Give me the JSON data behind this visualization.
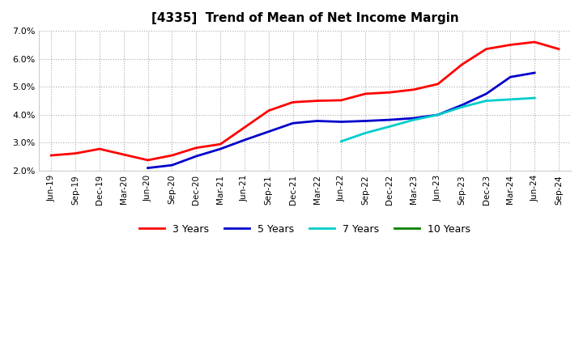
{
  "title": "[4335]  Trend of Mean of Net Income Margin",
  "x_labels": [
    "Jun-19",
    "Sep-19",
    "Dec-19",
    "Mar-20",
    "Jun-20",
    "Sep-20",
    "Dec-20",
    "Mar-21",
    "Jun-21",
    "Sep-21",
    "Dec-21",
    "Mar-22",
    "Jun-22",
    "Sep-22",
    "Dec-22",
    "Mar-23",
    "Jun-23",
    "Sep-23",
    "Dec-23",
    "Mar-24",
    "Jun-24",
    "Sep-24"
  ],
  "ylim": [
    0.02,
    0.07
  ],
  "yticks": [
    0.02,
    0.03,
    0.04,
    0.05,
    0.06,
    0.07
  ],
  "series_3y": {
    "color": "#ff0000",
    "indices": [
      0,
      1,
      2,
      3,
      4,
      5,
      6,
      7,
      8,
      9,
      10,
      11,
      12,
      13,
      14,
      15,
      16,
      17,
      18,
      19,
      20,
      21
    ],
    "values": [
      0.0255,
      0.0262,
      0.0278,
      0.0258,
      0.0238,
      0.0255,
      0.0282,
      0.0295,
      0.0355,
      0.0415,
      0.0445,
      0.045,
      0.0452,
      0.0475,
      0.048,
      0.049,
      0.051,
      0.058,
      0.0635,
      0.065,
      0.066,
      0.0635
    ]
  },
  "series_5y": {
    "color": "#0000cc",
    "indices": [
      4,
      5,
      6,
      7,
      8,
      9,
      10,
      11,
      12,
      13,
      14,
      15,
      16,
      17,
      18,
      19,
      20
    ],
    "values": [
      0.021,
      0.022,
      0.0252,
      0.0278,
      0.031,
      0.034,
      0.037,
      0.0378,
      0.0375,
      0.0378,
      0.0382,
      0.0388,
      0.04,
      0.0435,
      0.0475,
      0.0535,
      0.055
    ]
  },
  "series_7y": {
    "color": "#00cccc",
    "indices": [
      12,
      13,
      14,
      15,
      16,
      17,
      18,
      19,
      20
    ],
    "values": [
      0.0305,
      0.0335,
      0.0358,
      0.0382,
      0.04,
      0.0428,
      0.045,
      0.0455,
      0.046
    ]
  },
  "legend_colors": [
    "#ff0000",
    "#0000cc",
    "#00cccc",
    "#008000"
  ],
  "legend_labels": [
    "3 Years",
    "5 Years",
    "7 Years",
    "10 Years"
  ],
  "background_color": "#ffffff",
  "grid_color": "#aaaaaa"
}
